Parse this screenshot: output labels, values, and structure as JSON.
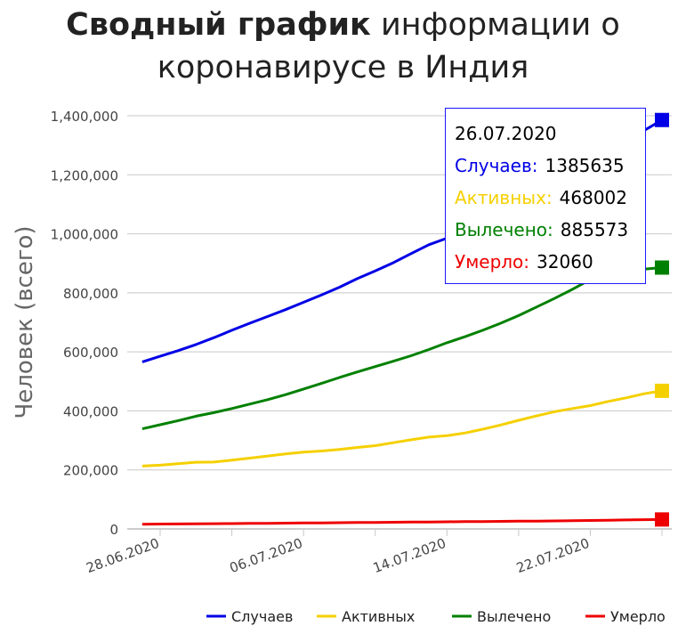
{
  "title": {
    "bold": "Сводный график",
    "rest": "информации о",
    "line2": "коронавирусе в Индия"
  },
  "chart_data": {
    "type": "line",
    "ylabel": "Человек (всего)",
    "xlabel": "",
    "ylim": [
      0,
      1400000
    ],
    "yticks": [
      "0",
      "200,000",
      "400,000",
      "600,000",
      "800,000",
      "1,000,000",
      "1,200,000",
      "1,400,000"
    ],
    "xticks": [
      "28.06.2020",
      "06.07.2020",
      "14.07.2020",
      "22.07.2020"
    ],
    "grid": "horizontal",
    "legend_position": "bottom",
    "x": [
      "24.06.2020",
      "25.06.2020",
      "26.06.2020",
      "27.06.2020",
      "28.06.2020",
      "29.06.2020",
      "30.06.2020",
      "01.07.2020",
      "02.07.2020",
      "03.07.2020",
      "04.07.2020",
      "05.07.2020",
      "06.07.2020",
      "07.07.2020",
      "08.07.2020",
      "09.07.2020",
      "10.07.2020",
      "11.07.2020",
      "12.07.2020",
      "13.07.2020",
      "14.07.2020",
      "15.07.2020",
      "16.07.2020",
      "17.07.2020",
      "18.07.2020",
      "19.07.2020",
      "20.07.2020",
      "21.07.2020",
      "22.07.2020",
      "23.07.2020",
      "24.07.2020",
      "25.07.2020",
      "26.07.2020"
    ],
    "series": [
      {
        "name": "Случаев",
        "color": "#0000e6",
        "values": [
          510000,
          530000,
          548000,
          566000,
          585000,
          604000,
          625000,
          648000,
          673000,
          697000,
          720000,
          743000,
          768000,
          793000,
          819000,
          848000,
          874000,
          902000,
          933000,
          963000,
          985000,
          1005000,
          1025000,
          1060000,
          1090000,
          1120000,
          1150000,
          1190000,
          1230000,
          1270000,
          1310000,
          1350000,
          1385635
        ]
      },
      {
        "name": "Активных",
        "color": "#f5d000",
        "values": [
          198000,
          203000,
          209000,
          213000,
          216000,
          221000,
          226000,
          226500,
          233000,
          240000,
          247000,
          254000,
          260000,
          264000,
          269000,
          276000,
          282000,
          292000,
          302000,
          311000,
          316000,
          325000,
          338000,
          352000,
          368000,
          383000,
          397000,
          408000,
          418000,
          432000,
          444000,
          458000,
          468002
        ]
      },
      {
        "name": "Вылечено",
        "color": "#008000",
        "values": [
          296000,
          311000,
          325000,
          339000,
          353000,
          367000,
          382000,
          394000,
          408000,
          423000,
          438000,
          455000,
          474000,
          493000,
          513000,
          532000,
          550000,
          568000,
          587000,
          608000,
          631000,
          651000,
          673000,
          697000,
          723000,
          752000,
          781000,
          812000,
          845000,
          865000,
          875000,
          880000,
          885573
        ]
      },
      {
        "name": "Умерло",
        "color": "#ee0000",
        "values": [
          14900,
          15300,
          15700,
          16100,
          16500,
          16900,
          17400,
          17800,
          18200,
          18600,
          19100,
          19600,
          20100,
          20600,
          21100,
          21600,
          22100,
          22600,
          23100,
          23600,
          24100,
          24600,
          25100,
          25600,
          26100,
          26600,
          27100,
          27700,
          28700,
          29700,
          30600,
          31400,
          32060
        ]
      }
    ],
    "tooltip": {
      "date": "26.07.2020",
      "rows": [
        {
          "label": "Случаев:",
          "value": "1385635",
          "color": "#0000e6"
        },
        {
          "label": "Активных:",
          "value": "468002",
          "color": "#f5d000"
        },
        {
          "label": "Вылечено:",
          "value": "885573",
          "color": "#008000"
        },
        {
          "label": "Умерло:",
          "value": "32060",
          "color": "#ee0000"
        }
      ]
    }
  }
}
